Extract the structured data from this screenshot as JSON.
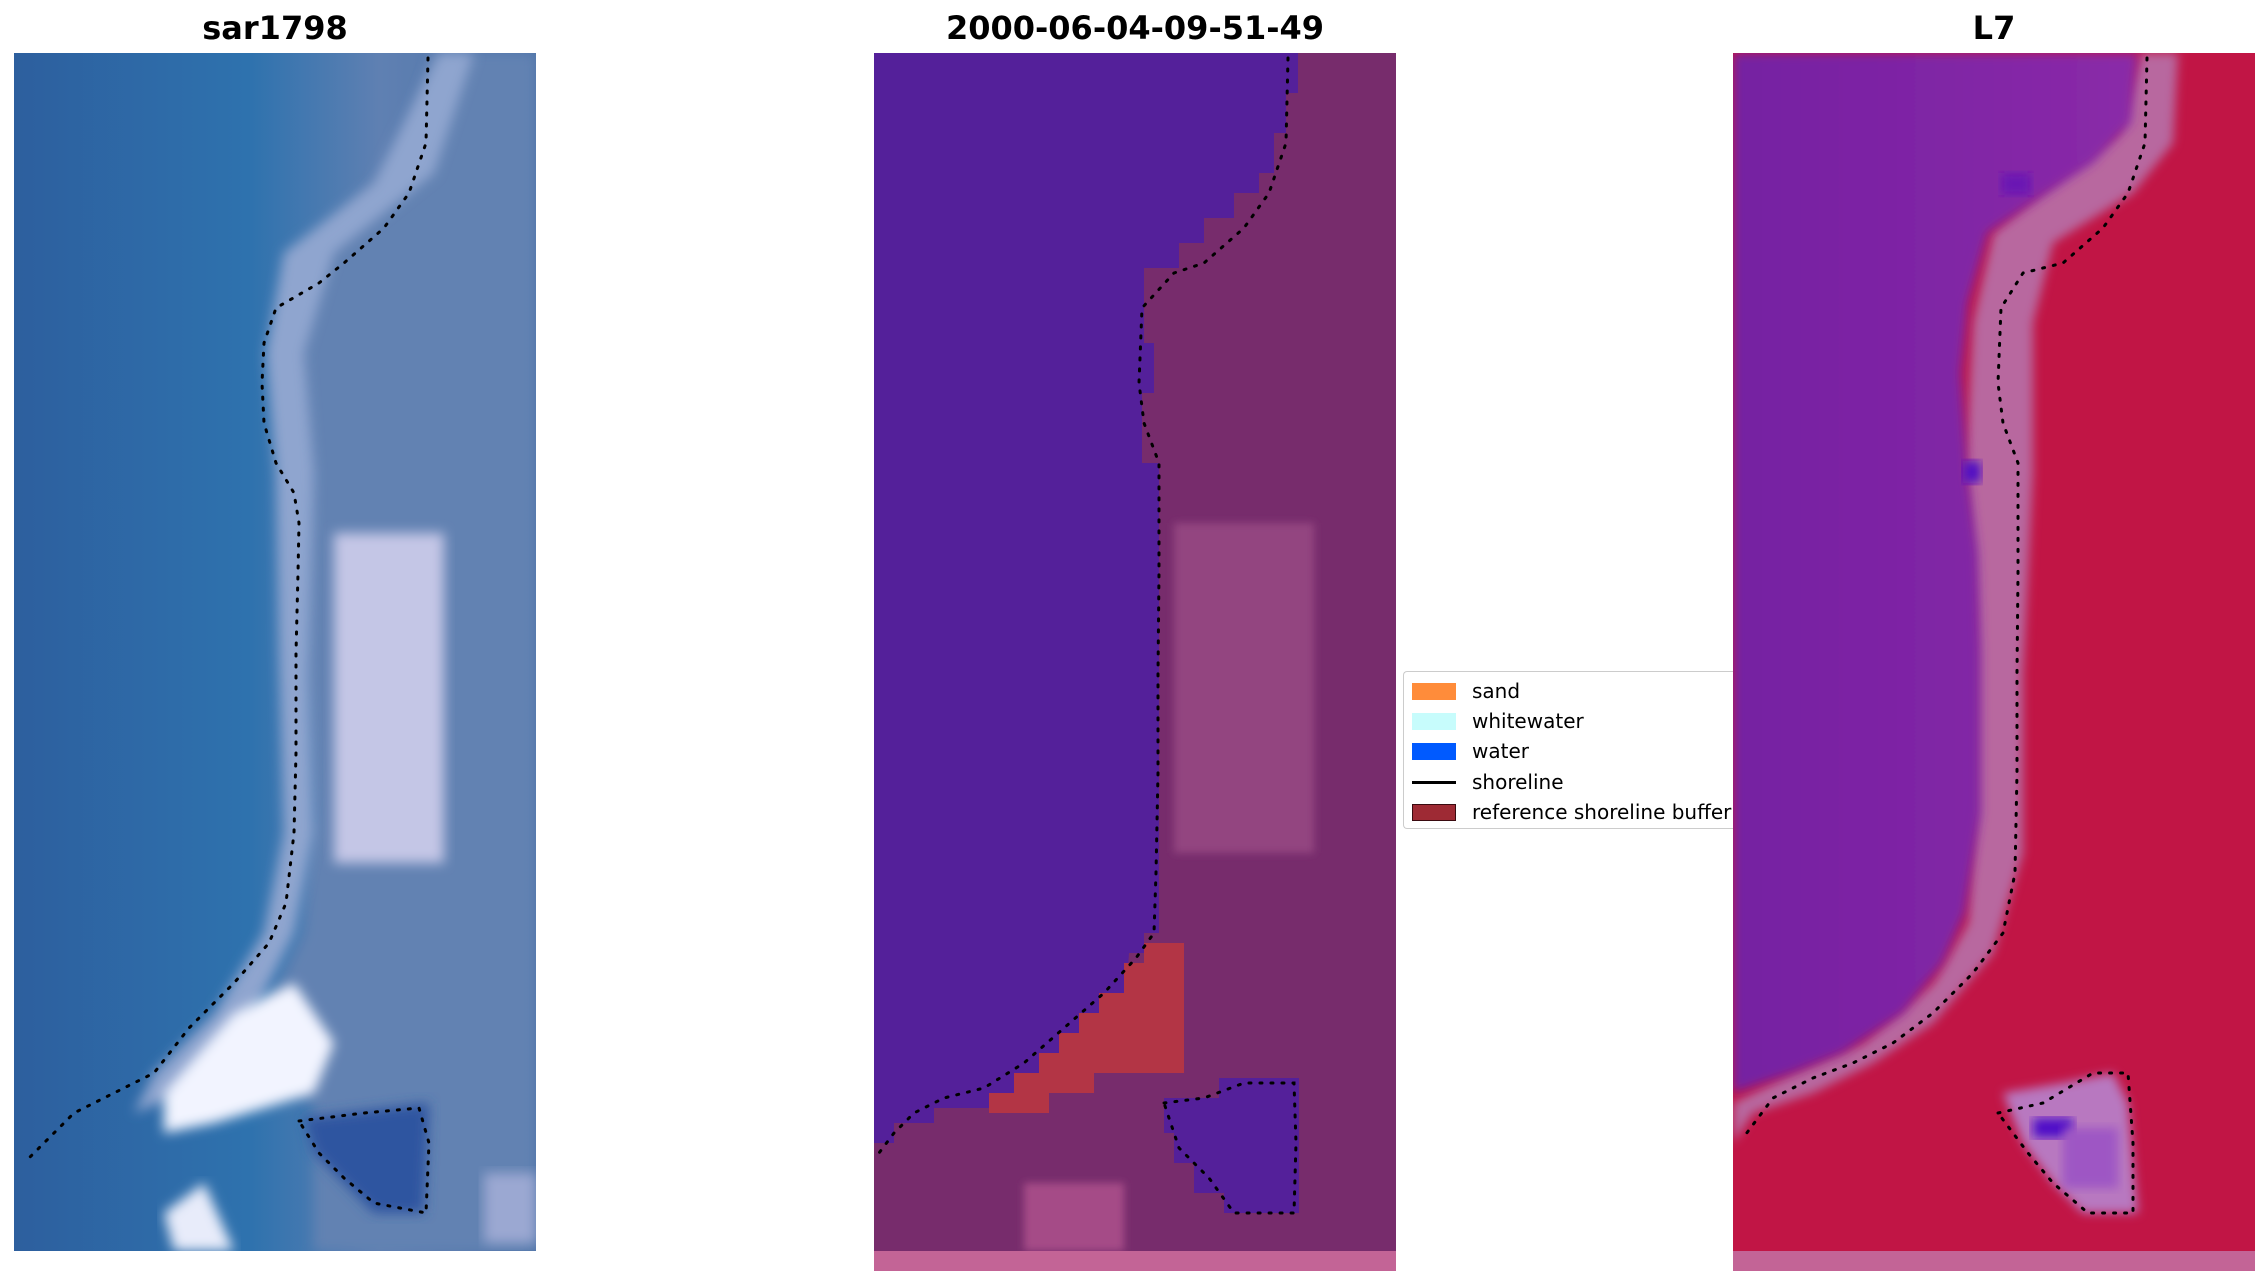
{
  "panels": [
    {
      "title": "sar1798"
    },
    {
      "title": "2000-06-04-09-51-49"
    },
    {
      "title": "L7"
    }
  ],
  "legend": {
    "items": [
      {
        "label": "sand",
        "color": "#ff8c3a",
        "kind": "patch"
      },
      {
        "label": "whitewater",
        "color": "#c7fcfc",
        "kind": "patch"
      },
      {
        "label": "water",
        "color": "#005aff",
        "kind": "patch"
      },
      {
        "label": "shoreline",
        "color": "#000000",
        "kind": "line"
      },
      {
        "label": "reference shoreline buffer",
        "color": "#9e2a34",
        "kind": "patch"
      }
    ]
  },
  "colors": {
    "rgb_water": "#2f6fae",
    "rgb_land": "#5f7fae",
    "rgb_sand": "#c9d2ea",
    "rgb_surf": "#f4f6ff",
    "class_water": "#54209a",
    "class_land": "#772c6c",
    "class_land_light": "#94447e",
    "class_buffer": "#b33545",
    "class_pad": "#c36496",
    "index_water": "#7d22a6",
    "index_land": "#c11545",
    "index_transition": "#b868aa",
    "index_deep": "#5210c8"
  }
}
